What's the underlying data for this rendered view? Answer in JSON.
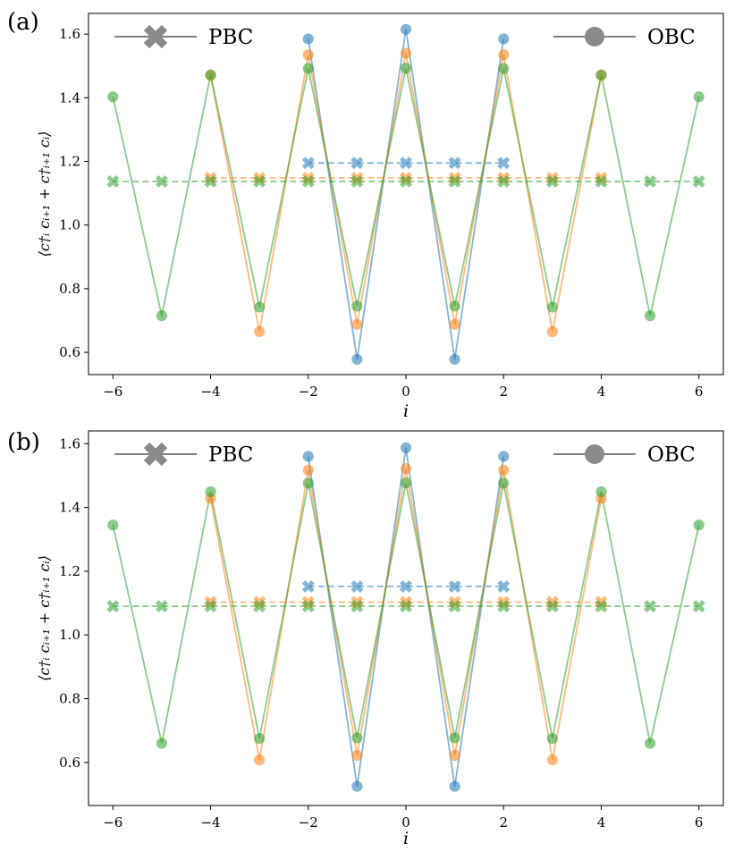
{
  "chart_data": [
    {
      "panel": "(a)",
      "type": "line",
      "xlabel": "i",
      "ylabel": "⟨c†ᵢ cᵢ₊₁ + c†ᵢ₊₁ cᵢ⟩",
      "xlim": [
        -6.5,
        6.5
      ],
      "ylim": [
        0.53,
        1.665
      ],
      "xticks": [
        -6,
        -4,
        -2,
        0,
        2,
        4,
        6
      ],
      "xtick_labels": [
        "−6",
        "−4",
        "−2",
        "0",
        "2",
        "4",
        "6"
      ],
      "yticks": [
        0.6,
        0.8,
        1.0,
        1.2,
        1.4,
        1.6
      ],
      "ytick_labels": [
        "0.6",
        "0.8",
        "1.0",
        "1.2",
        "1.4",
        "1.6"
      ],
      "legend": [
        {
          "label": "PBC",
          "marker": "x",
          "position": "top-left"
        },
        {
          "label": "OBC",
          "marker": "o",
          "position": "top-right"
        }
      ],
      "series": [
        {
          "name": "blue OBC",
          "color": "#1f77b4",
          "boundary": "OBC",
          "x": [
            -2,
            -1,
            0,
            1,
            2
          ],
          "y": [
            1.585,
            0.578,
            1.615,
            0.578,
            1.585
          ]
        },
        {
          "name": "orange OBC",
          "color": "#ff7f0e",
          "boundary": "OBC",
          "x": [
            -4,
            -3,
            -2,
            -1,
            0,
            1,
            2,
            3,
            4
          ],
          "y": [
            1.47,
            0.665,
            1.535,
            0.688,
            1.54,
            0.688,
            1.535,
            0.665,
            1.47
          ]
        },
        {
          "name": "green OBC",
          "color": "#2ca02c",
          "boundary": "OBC",
          "x": [
            -6,
            -5,
            -4,
            -3,
            -2,
            -1,
            0,
            1,
            2,
            3,
            4,
            5,
            6
          ],
          "y": [
            1.403,
            0.715,
            1.472,
            0.742,
            1.492,
            0.745,
            1.493,
            0.745,
            1.492,
            0.742,
            1.472,
            0.715,
            1.403
          ]
        },
        {
          "name": "blue PBC",
          "color": "#1f77b4",
          "boundary": "PBC",
          "x": [
            -2,
            -1,
            0,
            1,
            2
          ],
          "y": [
            1.195,
            1.195,
            1.195,
            1.195,
            1.195
          ]
        },
        {
          "name": "orange PBC",
          "color": "#ff7f0e",
          "boundary": "PBC",
          "x": [
            -4,
            -3,
            -2,
            -1,
            0,
            1,
            2,
            3,
            4
          ],
          "y": [
            1.148,
            1.148,
            1.148,
            1.148,
            1.148,
            1.148,
            1.148,
            1.148,
            1.148
          ]
        },
        {
          "name": "green PBC",
          "color": "#2ca02c",
          "boundary": "PBC",
          "x": [
            -6,
            -5,
            -4,
            -3,
            -2,
            -1,
            0,
            1,
            2,
            3,
            4,
            5,
            6
          ],
          "y": [
            1.137,
            1.137,
            1.137,
            1.137,
            1.137,
            1.137,
            1.137,
            1.137,
            1.137,
            1.137,
            1.137,
            1.137,
            1.137
          ]
        }
      ]
    },
    {
      "panel": "(b)",
      "type": "line",
      "xlabel": "i",
      "ylabel": "⟨c†ᵢ cᵢ₊₁ + c†ᵢ₊₁ cᵢ⟩",
      "xlim": [
        -6.5,
        6.5
      ],
      "ylim": [
        0.465,
        1.64
      ],
      "xticks": [
        -6,
        -4,
        -2,
        0,
        2,
        4,
        6
      ],
      "xtick_labels": [
        "−6",
        "−4",
        "−2",
        "0",
        "2",
        "4",
        "6"
      ],
      "yticks": [
        0.6,
        0.8,
        1.0,
        1.2,
        1.4,
        1.6
      ],
      "ytick_labels": [
        "0.6",
        "0.8",
        "1.0",
        "1.2",
        "1.4",
        "1.6"
      ],
      "legend": [
        {
          "label": "PBC",
          "marker": "x",
          "position": "top-left"
        },
        {
          "label": "OBC",
          "marker": "o",
          "position": "top-right"
        }
      ],
      "series": [
        {
          "name": "blue OBC",
          "color": "#1f77b4",
          "boundary": "OBC",
          "x": [
            -2,
            -1,
            0,
            1,
            2
          ],
          "y": [
            1.56,
            0.525,
            1.587,
            0.525,
            1.56
          ]
        },
        {
          "name": "orange OBC",
          "color": "#ff7f0e",
          "boundary": "OBC",
          "x": [
            -4,
            -3,
            -2,
            -1,
            0,
            1,
            2,
            3,
            4
          ],
          "y": [
            1.428,
            0.608,
            1.517,
            0.622,
            1.522,
            0.622,
            1.517,
            0.608,
            1.428
          ]
        },
        {
          "name": "green OBC",
          "color": "#2ca02c",
          "boundary": "OBC",
          "x": [
            -6,
            -5,
            -4,
            -3,
            -2,
            -1,
            0,
            1,
            2,
            3,
            4,
            5,
            6
          ],
          "y": [
            1.345,
            0.66,
            1.449,
            0.675,
            1.476,
            0.677,
            1.477,
            0.677,
            1.476,
            0.675,
            1.449,
            0.66,
            1.345
          ]
        },
        {
          "name": "blue PBC",
          "color": "#1f77b4",
          "boundary": "PBC",
          "x": [
            -2,
            -1,
            0,
            1,
            2
          ],
          "y": [
            1.152,
            1.152,
            1.152,
            1.152,
            1.152
          ]
        },
        {
          "name": "orange PBC",
          "color": "#ff7f0e",
          "boundary": "PBC",
          "x": [
            -4,
            -3,
            -2,
            -1,
            0,
            1,
            2,
            3,
            4
          ],
          "y": [
            1.103,
            1.103,
            1.103,
            1.103,
            1.103,
            1.103,
            1.103,
            1.103,
            1.103
          ]
        },
        {
          "name": "green PBC",
          "color": "#2ca02c",
          "boundary": "PBC",
          "x": [
            -6,
            -5,
            -4,
            -3,
            -2,
            -1,
            0,
            1,
            2,
            3,
            4,
            5,
            6
          ],
          "y": [
            1.09,
            1.09,
            1.09,
            1.09,
            1.09,
            1.09,
            1.09,
            1.09,
            1.09,
            1.09,
            1.09,
            1.09,
            1.09
          ]
        }
      ]
    }
  ]
}
